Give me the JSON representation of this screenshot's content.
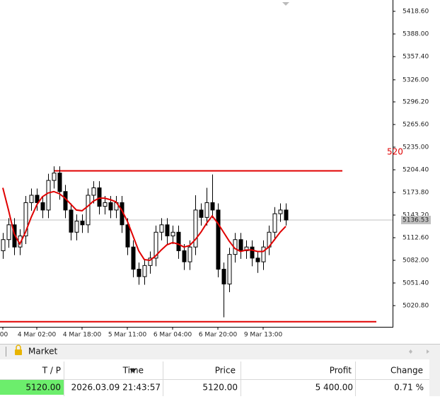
{
  "chart_data": {
    "type": "candlestick",
    "x": [
      ":00",
      null,
      null,
      null,
      null,
      null,
      "4 Mar 02:00",
      null,
      null,
      null,
      null,
      null,
      null,
      null,
      "4 Mar 18:00",
      null,
      null,
      null,
      null,
      null,
      null,
      null,
      "5 Mar 11:00",
      null,
      null,
      null,
      null,
      null,
      null,
      null,
      "6 Mar 04:00",
      null,
      null,
      null,
      null,
      null,
      null,
      null,
      "6 Mar 20:00",
      null,
      null,
      null,
      null,
      null,
      null,
      null,
      "9 Mar 13:00",
      null,
      null,
      null,
      null
    ],
    "open": [
      5095,
      5110,
      5130,
      5100,
      5115,
      5160,
      5170,
      5160,
      5150,
      5190,
      5200,
      5175,
      5150,
      5120,
      5135,
      5130,
      5170,
      5180,
      5155,
      5160,
      5150,
      5160,
      5130,
      5100,
      5070,
      5060,
      5075,
      5085,
      5120,
      5130,
      5115,
      5120,
      5095,
      5080,
      5100,
      5150,
      5140,
      5160,
      5150,
      5070,
      5050,
      5090,
      5110,
      5095,
      5100,
      5085,
      5080,
      5100,
      5120,
      5145,
      5150
    ],
    "high": [
      5119,
      5139,
      5139,
      5124,
      5169,
      5179,
      5179,
      5169,
      5199,
      5209,
      5209,
      5184,
      5159,
      5144,
      5144,
      5179,
      5189,
      5189,
      5169,
      5169,
      5169,
      5169,
      5139,
      5109,
      5079,
      5084,
      5094,
      5129,
      5139,
      5139,
      5129,
      5129,
      5104,
      5109,
      5170,
      5159,
      5180,
      5198,
      5159,
      5079,
      5099,
      5119,
      5119,
      5109,
      5109,
      5094,
      5109,
      5129,
      5154,
      5159,
      5159
    ],
    "low": [
      5084,
      5099,
      5089,
      5089,
      5104,
      5149,
      5149,
      5139,
      5139,
      5179,
      5164,
      5139,
      5109,
      5109,
      5119,
      5119,
      5159,
      5144,
      5144,
      5139,
      5139,
      5119,
      5089,
      5059,
      5049,
      5049,
      5064,
      5074,
      5109,
      5104,
      5104,
      5084,
      5069,
      5069,
      5089,
      5129,
      5129,
      5139,
      5059,
      5005,
      5039,
      5079,
      5084,
      5084,
      5074,
      5065,
      5069,
      5089,
      5109,
      5134,
      5129
    ],
    "close": [
      5110,
      5130,
      5100,
      5115,
      5160,
      5170,
      5160,
      5150,
      5190,
      5200,
      5175,
      5150,
      5120,
      5135,
      5130,
      5170,
      5180,
      5155,
      5160,
      5150,
      5160,
      5130,
      5100,
      5070,
      5060,
      5075,
      5085,
      5120,
      5130,
      5115,
      5120,
      5095,
      5080,
      5100,
      5150,
      5140,
      5160,
      5150,
      5070,
      5050,
      5090,
      5110,
      5095,
      5100,
      5085,
      5080,
      5100,
      5120,
      5145,
      5150,
      5136.53
    ],
    "ma": {
      "color": "#e00000",
      "values": [
        5180,
        5150,
        5118,
        5104,
        5120,
        5140,
        5157,
        5168,
        5173,
        5175,
        5172,
        5166,
        5158,
        5150,
        5149,
        5155,
        5162,
        5166,
        5166,
        5164,
        5161,
        5150,
        5135,
        5115,
        5095,
        5083,
        5082,
        5088,
        5096,
        5103,
        5106,
        5104,
        5100,
        5102,
        5110,
        5120,
        5132,
        5142,
        5132,
        5120,
        5108,
        5098,
        5094,
        5096,
        5096,
        5094,
        5094,
        5100,
        5110,
        5120,
        5128
      ]
    },
    "levels": [
      {
        "value": 5203,
        "color": "#e00000"
      },
      {
        "value": 4999,
        "color": "#e00000"
      }
    ],
    "level_label": "520",
    "last_price": 5136.53,
    "ylim": [
      4992.1,
      5433.9
    ],
    "yticks": [
      {
        "value": 5418.6,
        "label": "5418.60"
      },
      {
        "value": 5388,
        "label": "5388.00"
      },
      {
        "value": 5357.4,
        "label": "5357.40"
      },
      {
        "value": 5326,
        "label": "5326.00"
      },
      {
        "value": 5296.2,
        "label": "5296.20"
      },
      {
        "value": 5265.6,
        "label": "5265.60"
      },
      {
        "value": 5235,
        "label": "5235.00"
      },
      {
        "value": 5204.4,
        "label": "5204.40"
      },
      {
        "value": 5173.8,
        "label": "5173.80"
      },
      {
        "value": 5143.2,
        "label": "5143.20"
      },
      {
        "value": 5112.6,
        "label": "5112.60"
      },
      {
        "value": 5082,
        "label": "5082.00"
      },
      {
        "value": 5051.4,
        "label": "5051.40"
      },
      {
        "value": 5020.8,
        "label": "5020.80"
      }
    ],
    "grid": false
  },
  "terminal": {
    "tab": "Market",
    "columns": [
      "T / P",
      "Time",
      "Price",
      "Profit",
      "Change"
    ],
    "row": [
      "5120.00",
      "2026.03.09 21:43:57",
      "5120.00",
      "5 400.00",
      "0.71 %"
    ]
  }
}
